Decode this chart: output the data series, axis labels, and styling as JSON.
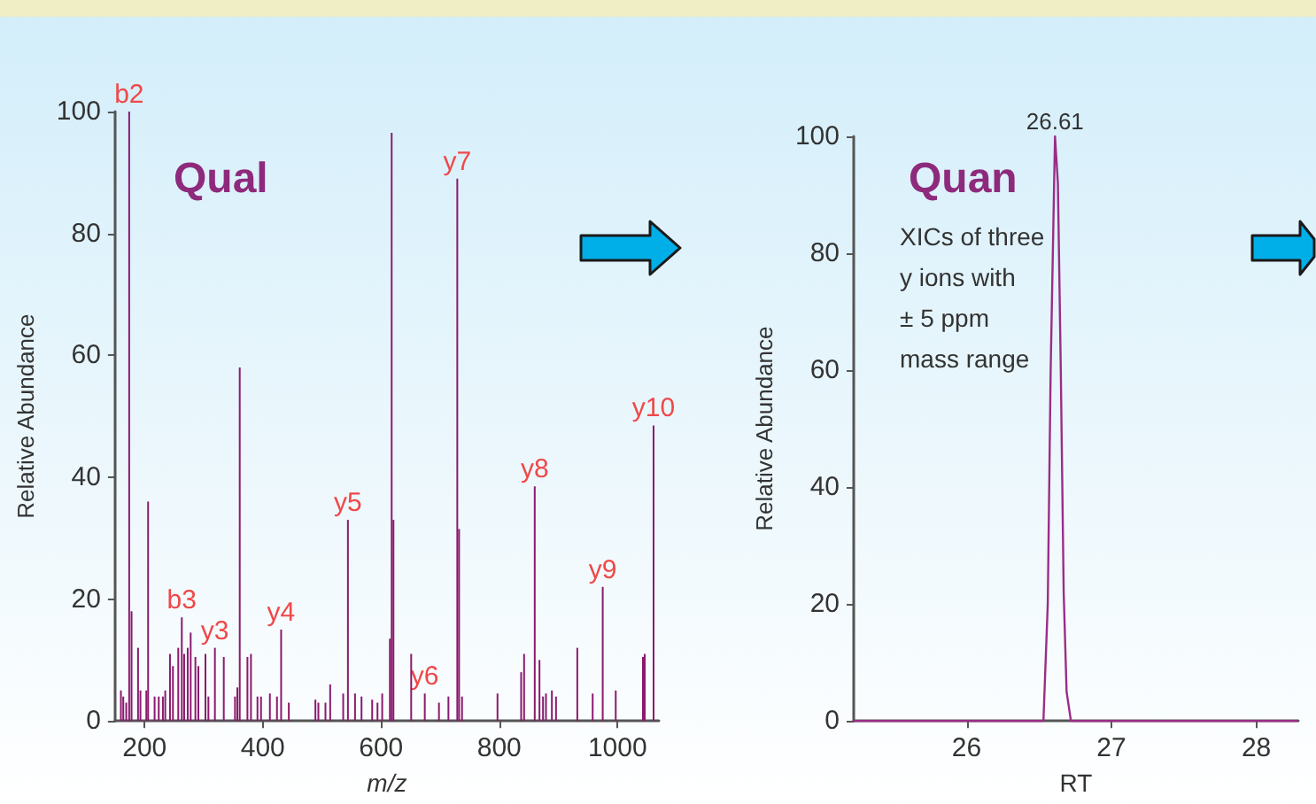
{
  "chart_data": [
    {
      "type": "bar",
      "title": "Qual",
      "xlabel": "m/z",
      "ylabel": "Relative Abundance",
      "color": "#8b1a6e",
      "x": [
        160,
        164,
        169,
        174,
        178,
        189,
        193,
        203,
        206,
        217,
        224,
        231,
        235,
        243,
        248,
        257,
        263,
        267,
        273,
        278,
        286,
        291,
        303,
        308,
        319,
        334,
        353,
        357,
        361,
        374,
        380,
        391,
        397,
        412,
        424,
        431,
        444,
        489,
        494,
        506,
        514,
        536,
        544,
        556,
        567,
        585,
        594,
        602,
        615,
        618,
        621,
        651,
        674,
        698,
        714,
        729,
        732,
        737,
        797,
        837,
        842,
        860,
        868,
        874,
        879,
        889,
        896,
        932,
        958,
        975,
        997,
        1043,
        1046,
        1061
      ],
      "values": [
        5,
        4,
        3,
        100,
        18,
        12,
        5,
        5,
        36,
        4,
        4,
        4,
        5,
        11,
        9,
        12,
        17,
        11,
        12,
        14.5,
        10.5,
        9,
        11,
        4,
        12,
        10.5,
        4,
        5.5,
        58,
        10.5,
        11,
        4,
        4,
        4.5,
        4,
        15,
        3,
        3.5,
        3,
        3,
        6,
        4.5,
        33,
        4.5,
        4,
        3.5,
        3,
        4.5,
        13.5,
        96.5,
        33,
        11,
        4.5,
        3,
        4,
        89,
        31.5,
        4,
        4.5,
        8,
        11,
        38.5,
        10,
        4,
        4.5,
        5,
        4,
        12,
        4.5,
        22,
        5,
        10.5,
        11,
        48.5
      ],
      "xlim": [
        150,
        1070
      ],
      "xticks": [
        200,
        400,
        600,
        800,
        1000
      ],
      "ylim": [
        0,
        100
      ],
      "yticks": [
        0,
        20,
        40,
        60,
        80,
        100
      ],
      "annotations": [
        {
          "text": "b2",
          "x": 174,
          "y": 100
        },
        {
          "text": "b3",
          "x": 263,
          "y": 17
        },
        {
          "text": "y3",
          "x": 319,
          "y": 12
        },
        {
          "text": "y4",
          "x": 431,
          "y": 15
        },
        {
          "text": "y5",
          "x": 544,
          "y": 33
        },
        {
          "text": "y6",
          "x": 674,
          "y": 4.5
        },
        {
          "text": "y7",
          "x": 729,
          "y": 89
        },
        {
          "text": "y8",
          "x": 860,
          "y": 38.5
        },
        {
          "text": "y9",
          "x": 975,
          "y": 22
        },
        {
          "text": "y10",
          "x": 1061,
          "y": 48.5
        }
      ]
    },
    {
      "type": "line",
      "title": "Quan",
      "xlabel": "RT",
      "ylabel": "Relative Abundance",
      "color": "#9b2d86",
      "marker": "none",
      "x": [
        25.22,
        25.6,
        26.0,
        26.4,
        26.53,
        26.56,
        26.58,
        26.61,
        26.63,
        26.65,
        26.67,
        26.69,
        26.72,
        27.0,
        27.5,
        28.0,
        28.29
      ],
      "values": [
        0,
        0,
        0,
        0,
        0,
        20,
        60,
        100,
        92,
        60,
        22,
        5,
        0,
        0,
        0,
        0,
        0
      ],
      "xlim": [
        25.22,
        28.29
      ],
      "xticks": [
        26,
        27,
        28
      ],
      "ylim": [
        0,
        100
      ],
      "yticks": [
        0,
        20,
        40,
        60,
        80,
        100
      ],
      "annotations": [
        {
          "text": "26.61",
          "x": 26.61,
          "y": 100
        },
        "XICs of three\ny ions with\n± 5 ppm\nmass range"
      ]
    }
  ]
}
